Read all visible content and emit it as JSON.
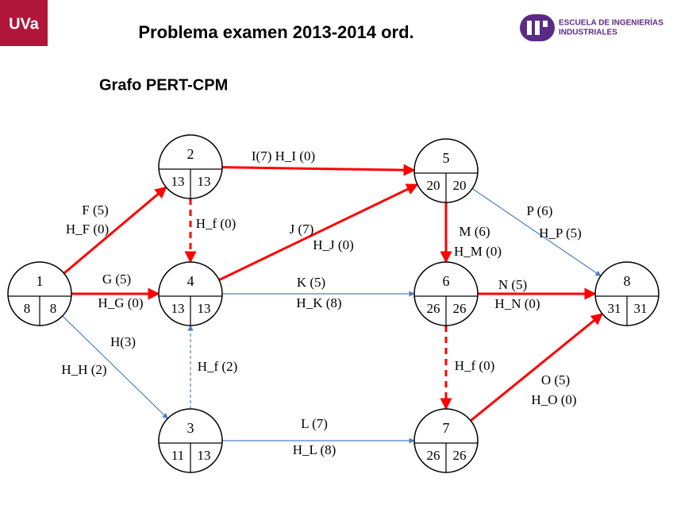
{
  "header": {
    "logo": "UVa",
    "title": "Problema examen 2013-2014 ord.",
    "school_line1": "ESCUELA DE INGENIERÍAS",
    "school_line2": "INDUSTRIALES"
  },
  "subtitle": "Grafo PERT-CPM",
  "nodes": [
    {
      "label": "1",
      "early": "8",
      "late": "8"
    },
    {
      "label": "2",
      "early": "13",
      "late": "13"
    },
    {
      "label": "3",
      "early": "11",
      "late": "13"
    },
    {
      "label": "4",
      "early": "13",
      "late": "13"
    },
    {
      "label": "5",
      "early": "20",
      "late": "20"
    },
    {
      "label": "6",
      "early": "26",
      "late": "26"
    },
    {
      "label": "7",
      "early": "26",
      "late": "26"
    },
    {
      "label": "8",
      "early": "31",
      "late": "31"
    }
  ],
  "edges": [
    {
      "labels": [
        "F (5)",
        "H_F (0)"
      ]
    },
    {
      "labels": [
        "G (5)",
        "H_G (0)"
      ]
    },
    {
      "labels": [
        "H(3)",
        "H_H (2)"
      ]
    },
    {
      "labels": [
        "I(7)  H_I (0)"
      ]
    },
    {
      "labels": [
        "H_f (0)"
      ]
    },
    {
      "labels": [
        "J (7)",
        "H_J (0)"
      ]
    },
    {
      "labels": [
        "K (5)",
        "H_K (8)"
      ]
    },
    {
      "labels": [
        "H_f (2)"
      ]
    },
    {
      "labels": [
        "L (7)",
        "H_L (8)"
      ]
    },
    {
      "labels": [
        "M (6)",
        "H_M (0)"
      ]
    },
    {
      "labels": [
        "P (6)",
        "H_P (5)"
      ]
    },
    {
      "labels": [
        "N (5)",
        "H_N (0)"
      ]
    },
    {
      "labels": [
        "H_f (0)"
      ]
    },
    {
      "labels": [
        "O (5)",
        "H_O (0)"
      ]
    }
  ]
}
